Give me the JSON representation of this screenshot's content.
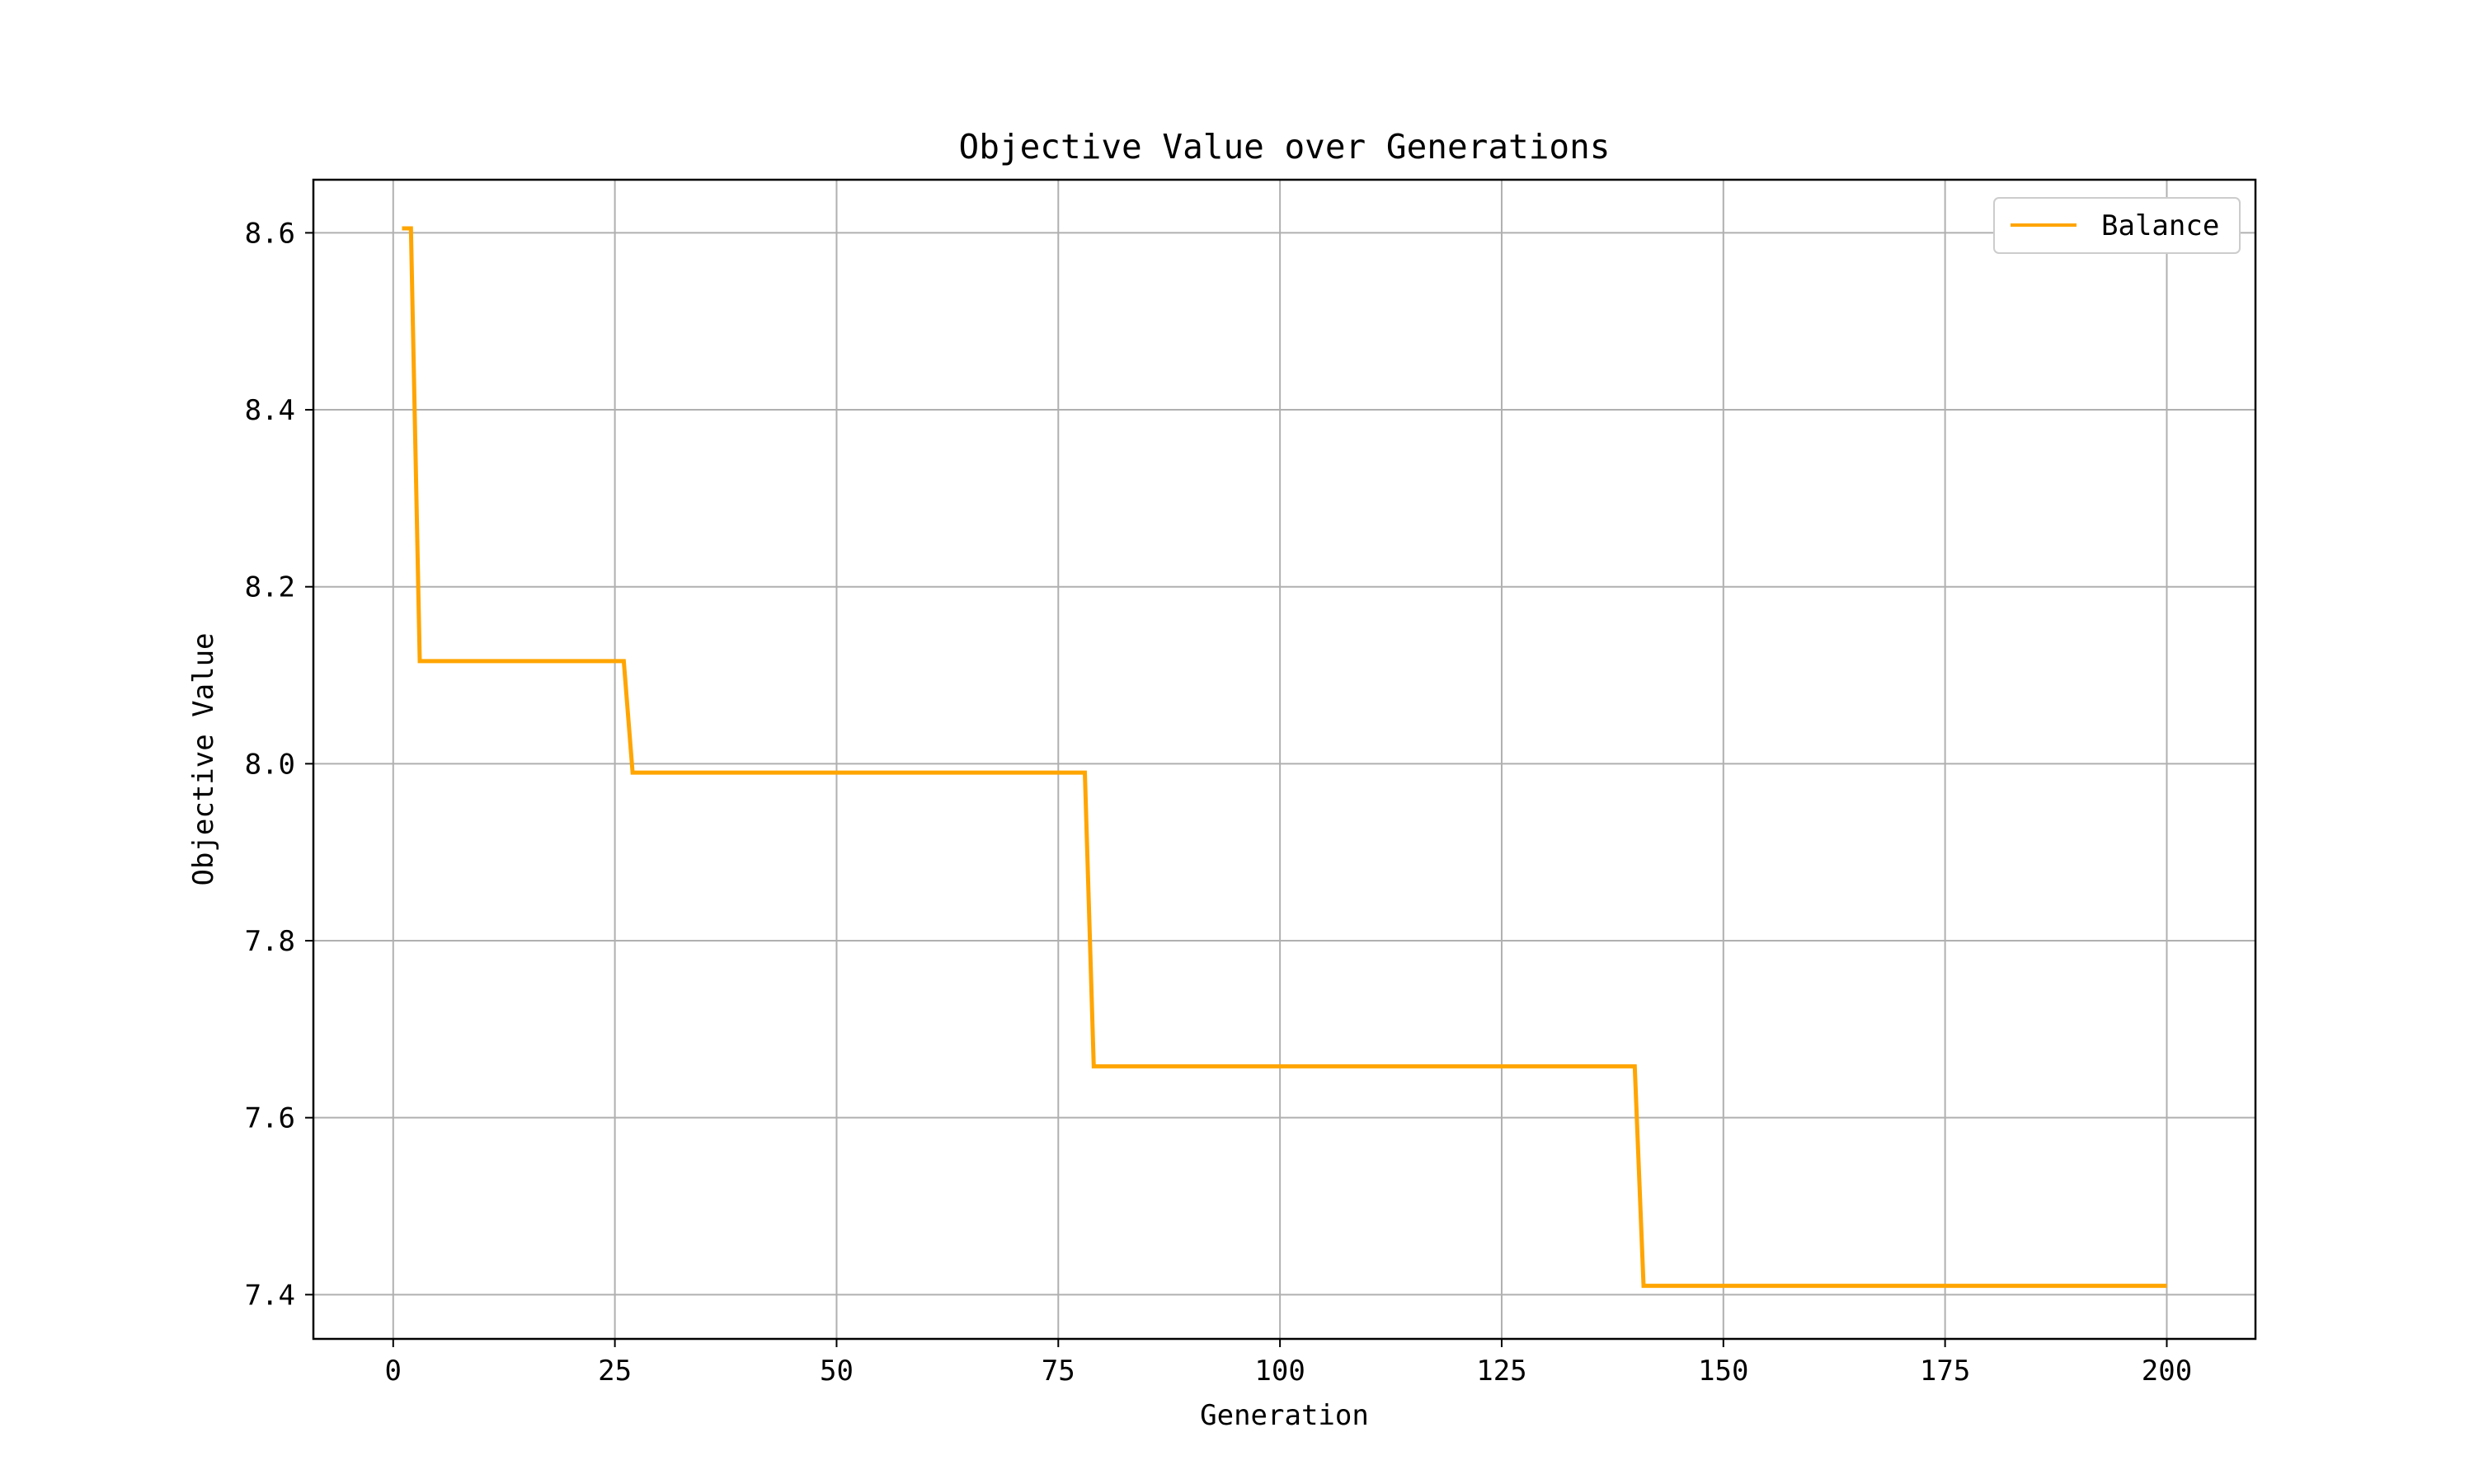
{
  "chart_data": {
    "type": "line",
    "title": "Objective Value over Generations",
    "xlabel": "Generation",
    "ylabel": "Objective Value",
    "xlim": [
      -9,
      210
    ],
    "ylim": [
      7.35,
      8.66
    ],
    "xticks": [
      0,
      25,
      50,
      75,
      100,
      125,
      150,
      175,
      200
    ],
    "xtick_labels": [
      "0",
      "25",
      "50",
      "75",
      "100",
      "125",
      "150",
      "175",
      "200"
    ],
    "yticks": [
      7.4,
      7.6,
      7.8,
      8.0,
      8.2,
      8.4,
      8.6
    ],
    "ytick_labels": [
      "7.4",
      "7.6",
      "7.8",
      "8.0",
      "8.2",
      "8.4",
      "8.6"
    ],
    "grid": true,
    "legend_position": "top-right",
    "series": [
      {
        "name": "Balance",
        "color": "#ffa500",
        "x": [
          1,
          2,
          3,
          26,
          27,
          78,
          79,
          140,
          141,
          200
        ],
        "y": [
          8.605,
          8.605,
          8.116,
          8.116,
          7.99,
          7.99,
          7.658,
          7.658,
          7.41,
          7.41
        ]
      }
    ]
  }
}
